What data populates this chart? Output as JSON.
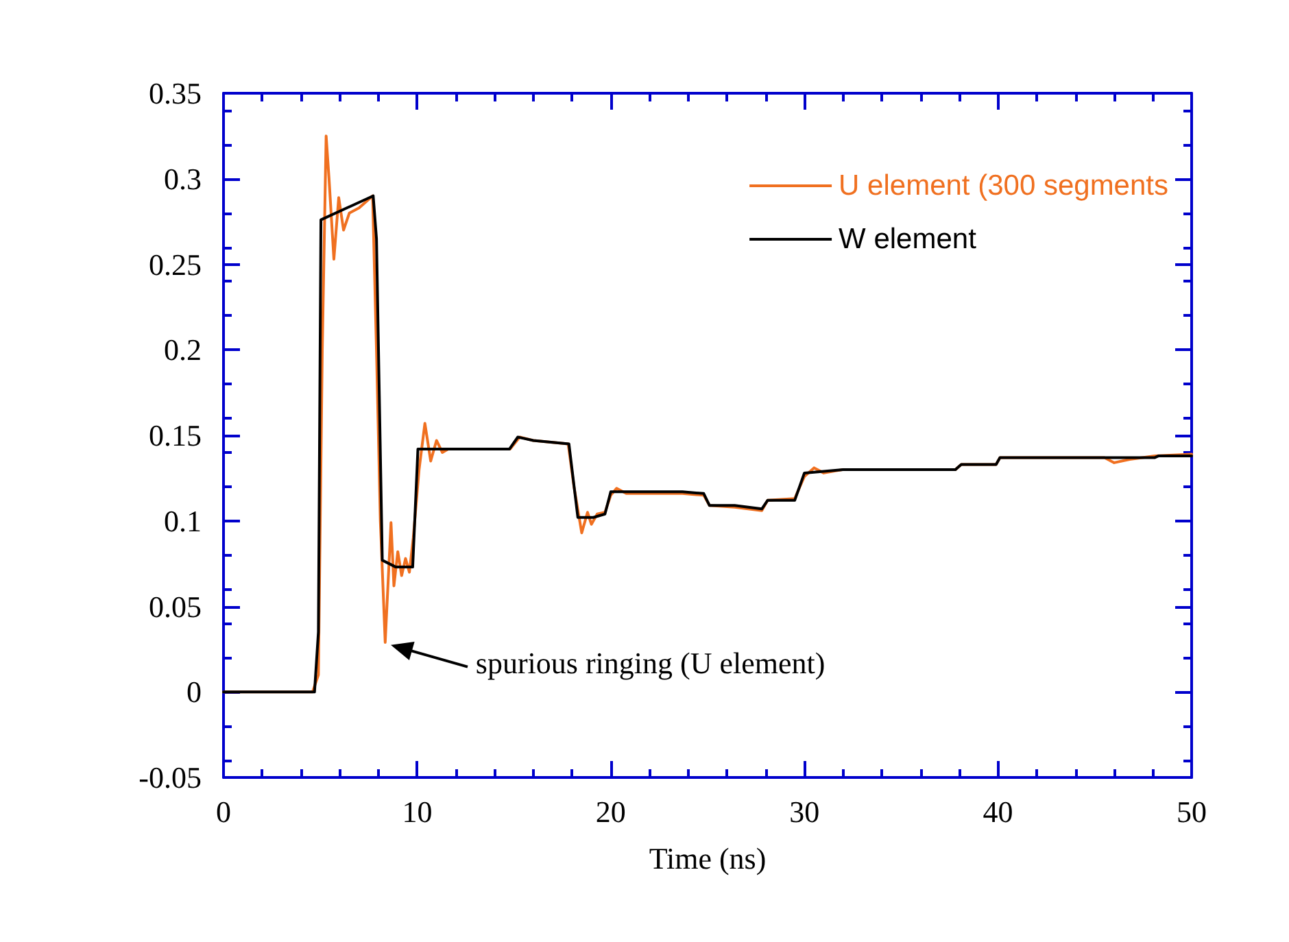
{
  "chart_data": {
    "type": "line",
    "xlabel": "Time (ns)",
    "xlim": [
      0,
      50
    ],
    "xticks": [
      0,
      10,
      20,
      30,
      40,
      50
    ],
    "ylim": [
      -0.05,
      0.35
    ],
    "yticks": [
      -0.05,
      0,
      0.05,
      0.1,
      0.15,
      0.2,
      0.25,
      0.3,
      0.35
    ],
    "grid": false,
    "legend": "top right",
    "marker": "none",
    "line_style": "solid",
    "annotations": [
      {
        "text": "spurious ringing (U element)",
        "x": 8.35,
        "y": 0.029
      }
    ],
    "series": [
      {
        "name": "U element (300 segments",
        "color": "#f07020",
        "x": [
          0,
          4.6,
          4.9,
          5.1,
          5.3,
          5.45,
          5.7,
          5.95,
          6.2,
          6.5,
          7.0,
          7.7,
          7.9,
          8.1,
          8.35,
          8.65,
          8.8,
          9.0,
          9.2,
          9.4,
          9.6,
          9.8,
          10.1,
          10.4,
          10.7,
          11.0,
          11.3,
          11.6,
          14.8,
          15.3,
          16.0,
          17.8,
          18.1,
          18.5,
          18.8,
          19.0,
          19.3,
          19.7,
          20.0,
          20.3,
          20.8,
          23.7,
          24.8,
          25.1,
          26.4,
          27.8,
          28.1,
          29.5,
          30.0,
          30.5,
          31.0,
          32.0,
          37.8,
          38.1,
          39.9,
          40.1,
          45.5,
          46.0,
          46.8,
          48.1,
          50
        ],
        "values": [
          0,
          0,
          0.01,
          0.2,
          0.325,
          0.3,
          0.253,
          0.289,
          0.27,
          0.28,
          0.283,
          0.29,
          0.2,
          0.1,
          0.029,
          0.099,
          0.062,
          0.082,
          0.068,
          0.078,
          0.07,
          0.09,
          0.13,
          0.157,
          0.135,
          0.147,
          0.14,
          0.142,
          0.142,
          0.149,
          0.147,
          0.145,
          0.12,
          0.093,
          0.105,
          0.098,
          0.104,
          0.105,
          0.115,
          0.119,
          0.116,
          0.116,
          0.115,
          0.109,
          0.108,
          0.106,
          0.112,
          0.113,
          0.126,
          0.131,
          0.128,
          0.13,
          0.13,
          0.133,
          0.133,
          0.137,
          0.137,
          0.134,
          0.136,
          0.138,
          0.139
        ]
      },
      {
        "name": "W element",
        "color": "#000000",
        "x": [
          0,
          4.7,
          4.9,
          5.03,
          7.73,
          7.9,
          8.2,
          8.9,
          9.77,
          10.04,
          14.77,
          15.2,
          16.0,
          17.84,
          18.3,
          19.1,
          19.7,
          20.0,
          23.7,
          24.8,
          25.1,
          26.4,
          27.8,
          28.1,
          29.5,
          30.0,
          32.0,
          37.8,
          38.1,
          39.9,
          40.1,
          48.1,
          48.3,
          50
        ],
        "values": [
          0,
          0,
          0.035,
          0.276,
          0.29,
          0.265,
          0.077,
          0.073,
          0.073,
          0.142,
          0.142,
          0.149,
          0.147,
          0.145,
          0.102,
          0.102,
          0.104,
          0.117,
          0.117,
          0.116,
          0.109,
          0.109,
          0.107,
          0.112,
          0.112,
          0.128,
          0.13,
          0.13,
          0.133,
          0.133,
          0.137,
          0.137,
          0.138,
          0.138
        ]
      }
    ]
  }
}
